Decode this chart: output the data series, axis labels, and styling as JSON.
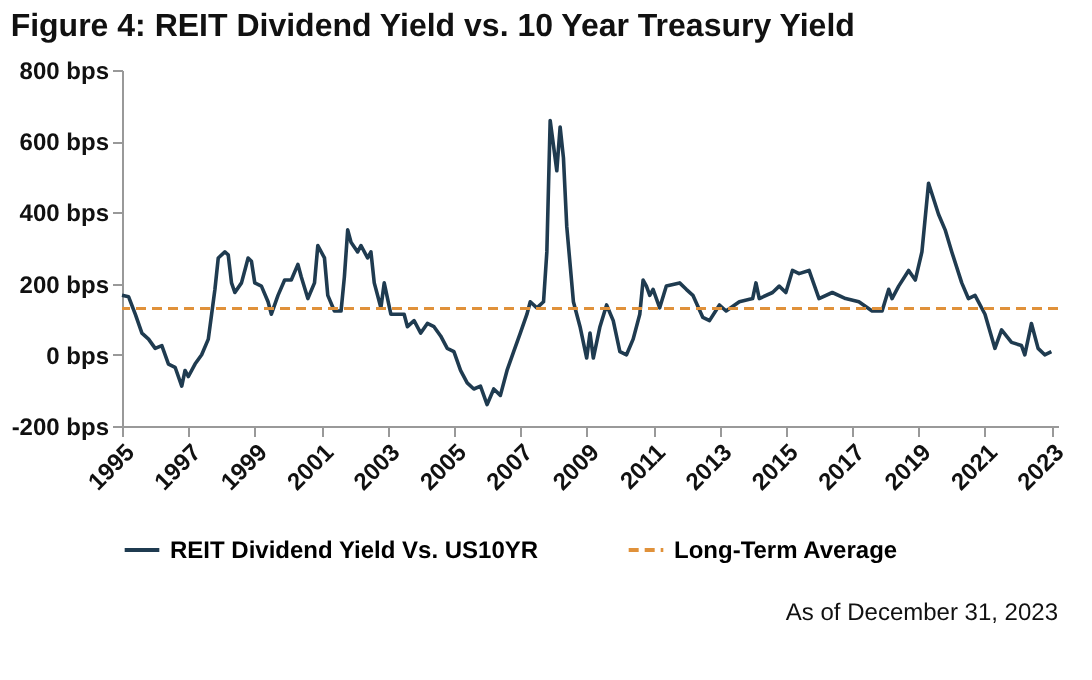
{
  "chart_data": {
    "type": "line",
    "title": "Figure 4: REIT Dividend Yield vs. 10 Year Treasury Yield",
    "series": [
      {
        "name": "REIT Dividend Yield Vs. US10YR",
        "color": "#1f3b50",
        "x": [
          1995.0,
          1995.2,
          1995.4,
          1995.6,
          1995.8,
          1996.0,
          1996.2,
          1996.4,
          1996.6,
          1996.8,
          1996.9,
          1997.0,
          1997.2,
          1997.4,
          1997.6,
          1997.7,
          1997.8,
          1997.9,
          1998.1,
          1998.2,
          1998.3,
          1998.4,
          1998.6,
          1998.8,
          1998.9,
          1999.0,
          1999.2,
          1999.4,
          1999.5,
          1999.7,
          1999.9,
          2000.1,
          2000.3,
          2000.4,
          2000.6,
          2000.8,
          2000.9,
          2001.1,
          2001.2,
          2001.4,
          2001.6,
          2001.7,
          2001.8,
          2001.9,
          2002.1,
          2002.2,
          2002.4,
          2002.5,
          2002.6,
          2002.8,
          2002.9,
          2003.1,
          2003.3,
          2003.5,
          2003.6,
          2003.8,
          2004.0,
          2004.2,
          2004.4,
          2004.6,
          2004.8,
          2005.0,
          2005.2,
          2005.4,
          2005.6,
          2005.8,
          2006.0,
          2006.2,
          2006.4,
          2006.6,
          2006.8,
          2007.0,
          2007.2,
          2007.3,
          2007.5,
          2007.7,
          2007.8,
          2007.9,
          2008.0,
          2008.1,
          2008.2,
          2008.3,
          2008.4,
          2008.6,
          2008.8,
          2009.0,
          2009.1,
          2009.2,
          2009.4,
          2009.6,
          2009.8,
          2010.0,
          2010.2,
          2010.4,
          2010.6,
          2010.7,
          2010.8,
          2010.9,
          2011.0,
          2011.2,
          2011.4,
          2011.8,
          2012.0,
          2012.2,
          2012.5,
          2012.7,
          2013.0,
          2013.2,
          2013.6,
          2014.0,
          2014.1,
          2014.2,
          2014.6,
          2014.8,
          2015.0,
          2015.2,
          2015.4,
          2015.7,
          2016.0,
          2016.4,
          2016.8,
          2017.2,
          2017.6,
          2017.9,
          2018.1,
          2018.2,
          2018.4,
          2018.7,
          2018.9,
          2019.1,
          2019.3,
          2019.6,
          2019.8,
          2020.0,
          2020.3,
          2020.5,
          2020.7,
          2021.0,
          2021.3,
          2021.5,
          2021.8,
          2022.1,
          2022.2,
          2022.4,
          2022.6,
          2022.8,
          2023.0
        ],
        "values": [
          167,
          163,
          114,
          61,
          44,
          18,
          26,
          -26,
          -35,
          -88,
          -44,
          -61,
          -26,
          0,
          44,
          114,
          184,
          272,
          289,
          281,
          202,
          175,
          202,
          272,
          263,
          202,
          193,
          149,
          114,
          167,
          210,
          210,
          254,
          219,
          158,
          202,
          307,
          272,
          167,
          123,
          123,
          219,
          351,
          316,
          289,
          307,
          272,
          289,
          202,
          132,
          202,
          114,
          114,
          114,
          79,
          96,
          61,
          88,
          79,
          53,
          18,
          9,
          -44,
          -79,
          -96,
          -88,
          -140,
          -96,
          -114,
          -44,
          9,
          61,
          114,
          149,
          132,
          149,
          289,
          658,
          588,
          517,
          640,
          553,
          360,
          149,
          79,
          -9,
          61,
          -9,
          79,
          140,
          96,
          9,
          0,
          44,
          114,
          210,
          193,
          167,
          184,
          132,
          193,
          202,
          184,
          167,
          105,
          96,
          140,
          123,
          149,
          158,
          202,
          158,
          175,
          193,
          175,
          237,
          228,
          237,
          158,
          175,
          158,
          149,
          123,
          123,
          184,
          158,
          193,
          237,
          210,
          289,
          482,
          395,
          351,
          289,
          202,
          158,
          167,
          114,
          18,
          70,
          35,
          26,
          0,
          88,
          18,
          0,
          9
        ]
      }
    ],
    "xlim": [
      1995,
      2023.2
    ],
    "xticks": [
      1995,
      1997,
      1999,
      2001,
      2003,
      2005,
      2007,
      2009,
      2011,
      2013,
      2015,
      2017,
      2019,
      2021,
      2023
    ],
    "ylim": [
      -200,
      800
    ],
    "yticks": [
      {
        "value": -200,
        "label": "-200 bps"
      },
      {
        "value": 0,
        "label": "0 bps"
      },
      {
        "value": 200,
        "label": "200 bps"
      },
      {
        "value": 400,
        "label": "400 bps"
      },
      {
        "value": 600,
        "label": "600 bps"
      },
      {
        "value": 800,
        "label": "800 bps"
      }
    ],
    "ref_lines": [
      {
        "axis": "y",
        "value": 130,
        "label": "Long-Term Average",
        "color": "#e0913a",
        "line_style": "dashed"
      }
    ],
    "legend": "bottom",
    "grid": false,
    "marker": "none",
    "line_style": "solid",
    "annotations": [
      "As of December 31, 2023"
    ]
  }
}
